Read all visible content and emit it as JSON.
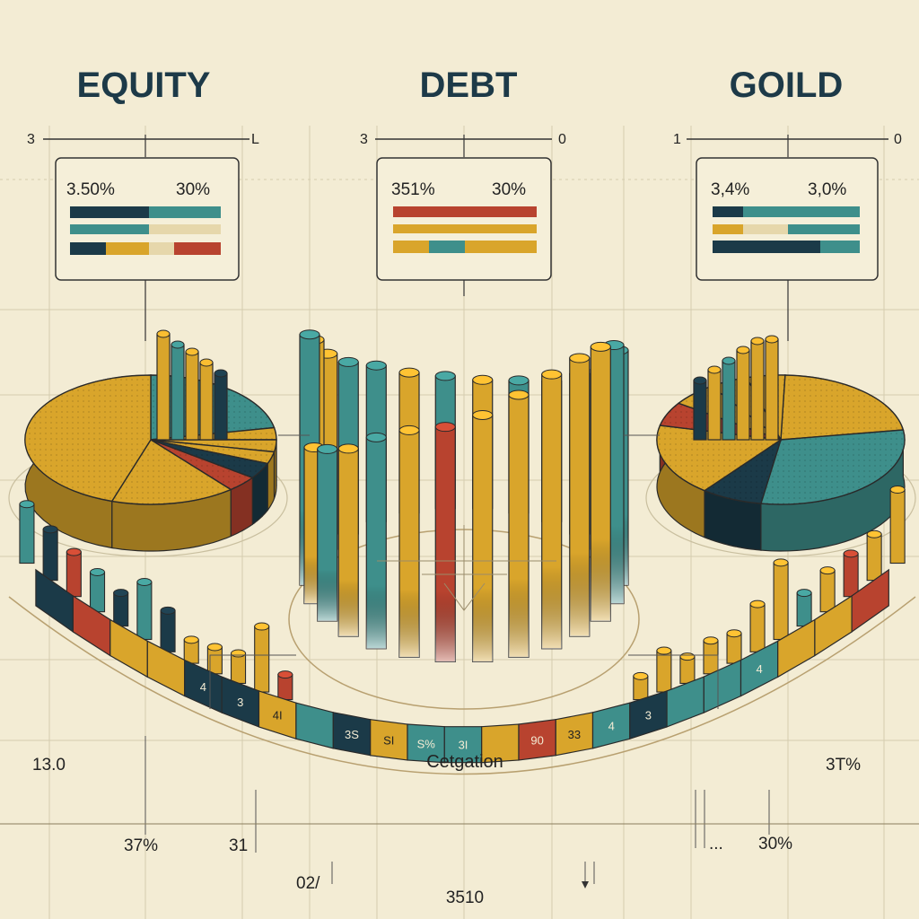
{
  "colors": {
    "navy": "#1b3a48",
    "teal": "#3e8f8b",
    "gold": "#d9a52b",
    "red": "#b8432f",
    "cream": "#e9ddb9",
    "background": "#f3ecd4"
  },
  "chart_data": [
    {
      "type": "pie",
      "title": "EQUITY",
      "axis_labels": [
        "3",
        "L"
      ],
      "legend": {
        "left": "3.50%",
        "right": "30%"
      },
      "slices": [
        {
          "color": "teal",
          "value": 22
        },
        {
          "color": "gold",
          "value": 3
        },
        {
          "color": "gold",
          "value": 3
        },
        {
          "color": "gold",
          "value": 3
        },
        {
          "color": "navy",
          "value": 4
        },
        {
          "color": "red",
          "value": 4
        },
        {
          "color": "gold",
          "value": 16
        },
        {
          "color": "gold",
          "value": 45
        }
      ]
    },
    {
      "type": "bar",
      "title": "DEBT",
      "axis_labels": [
        "3",
        "0"
      ],
      "legend": {
        "left": "351%",
        "right": "30%"
      },
      "bars": [
        {
          "color": "teal",
          "value": 50
        },
        {
          "color": "gold",
          "value": 44
        },
        {
          "color": "gold",
          "value": 36
        },
        {
          "color": "teal",
          "value": 30
        },
        {
          "color": "teal",
          "value": 26
        },
        {
          "color": "gold",
          "value": 22
        },
        {
          "color": "teal",
          "value": 20
        },
        {
          "color": "gold",
          "value": 19
        },
        {
          "color": "teal",
          "value": 20
        },
        {
          "color": "gold",
          "value": 22
        },
        {
          "color": "teal",
          "value": 27
        },
        {
          "color": "teal",
          "value": 32
        },
        {
          "color": "teal",
          "value": 38
        },
        {
          "color": "teal",
          "value": 46
        },
        {
          "color": "teal",
          "value": 52
        },
        {
          "color": "gold",
          "value": 56
        },
        {
          "color": "gold",
          "value": 57
        },
        {
          "color": "gold",
          "value": 56
        },
        {
          "color": "gold",
          "value": 53
        },
        {
          "color": "gold",
          "value": 49
        },
        {
          "color": "red",
          "value": 46
        },
        {
          "color": "gold",
          "value": 44
        },
        {
          "color": "teal",
          "value": 40
        },
        {
          "color": "gold",
          "value": 34
        },
        {
          "color": "teal",
          "value": 30
        },
        {
          "color": "gold",
          "value": 26
        }
      ]
    },
    {
      "type": "pie",
      "title": "GOILD",
      "axis_labels": [
        "1",
        "0"
      ],
      "legend": {
        "left": "3,4%",
        "right": "3,0%"
      },
      "slices": [
        {
          "color": "gold",
          "value": 22
        },
        {
          "color": "teal",
          "value": 30
        },
        {
          "color": "navy",
          "value": 8
        },
        {
          "color": "gold",
          "value": 18
        },
        {
          "color": "red",
          "value": 6
        },
        {
          "color": "gold",
          "value": 6
        },
        {
          "color": "gold",
          "value": 5
        },
        {
          "color": "gold",
          "value": 5
        }
      ]
    },
    {
      "type": "bar",
      "title": "Cetgation",
      "labels": {
        "left": "13.0",
        "right": "3T%",
        "bottom_left_a": "37%",
        "bottom_left_b": "31",
        "bottom_mid_left": "02/",
        "bottom_center": "3510",
        "bottom_right_dots": "...",
        "bottom_right": "30%"
      },
      "band_segments": [
        {
          "color": "navy",
          "text": ""
        },
        {
          "color": "red",
          "text": ""
        },
        {
          "color": "gold",
          "text": ""
        },
        {
          "color": "gold",
          "text": ""
        },
        {
          "color": "navy",
          "text": "4"
        },
        {
          "color": "navy",
          "text": "3"
        },
        {
          "color": "gold",
          "text": "4I"
        },
        {
          "color": "teal",
          "text": ""
        },
        {
          "color": "navy",
          "text": "3S"
        },
        {
          "color": "gold",
          "text": "SI"
        },
        {
          "color": "teal",
          "text": "S%"
        },
        {
          "color": "teal",
          "text": "3I"
        },
        {
          "color": "gold",
          "text": ""
        },
        {
          "color": "red",
          "text": "90"
        },
        {
          "color": "gold",
          "text": "33"
        },
        {
          "color": "teal",
          "text": "4"
        },
        {
          "color": "navy",
          "text": "3"
        },
        {
          "color": "teal",
          "text": ""
        },
        {
          "color": "teal",
          "text": ""
        },
        {
          "color": "teal",
          "text": "4"
        },
        {
          "color": "gold",
          "text": ""
        },
        {
          "color": "gold",
          "text": ""
        },
        {
          "color": "red",
          "text": ""
        }
      ],
      "left_bars": [
        {
          "color": "teal",
          "value": 62
        },
        {
          "color": "navy",
          "value": 52
        },
        {
          "color": "red",
          "value": 44
        },
        {
          "color": "teal",
          "value": 38
        },
        {
          "color": "navy",
          "value": 30
        },
        {
          "color": "teal",
          "value": 60
        },
        {
          "color": "navy",
          "value": 40
        },
        {
          "color": "gold",
          "value": 18
        },
        {
          "color": "gold",
          "value": 22
        },
        {
          "color": "gold",
          "value": 26
        },
        {
          "color": "gold",
          "value": 70
        },
        {
          "color": "red",
          "value": 20
        }
      ],
      "right_bars": [
        {
          "color": "gold",
          "value": 18
        },
        {
          "color": "gold",
          "value": 40
        },
        {
          "color": "gold",
          "value": 22
        },
        {
          "color": "gold",
          "value": 30
        },
        {
          "color": "gold",
          "value": 26
        },
        {
          "color": "gold",
          "value": 48
        },
        {
          "color": "gold",
          "value": 84
        },
        {
          "color": "teal",
          "value": 30
        },
        {
          "color": "gold",
          "value": 40
        },
        {
          "color": "red",
          "value": 42
        },
        {
          "color": "gold",
          "value": 46
        },
        {
          "color": "gold",
          "value": 80
        }
      ]
    }
  ]
}
